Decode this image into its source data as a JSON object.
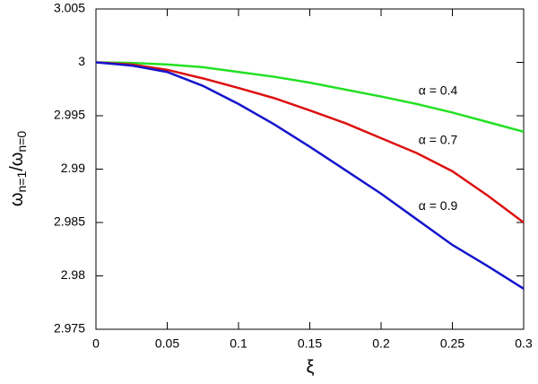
{
  "chart_data": {
    "type": "line",
    "x_label": "ξ",
    "y_label": [
      "ω",
      "n=1",
      "/ω",
      "n=0"
    ],
    "x": [
      0,
      0.025,
      0.05,
      0.075,
      0.1,
      0.125,
      0.15,
      0.175,
      0.2,
      0.225,
      0.25,
      0.275,
      0.3
    ],
    "series": [
      {
        "name": "α = 0.4",
        "color": "#22e022",
        "values": [
          3,
          2.99995,
          2.9998,
          2.99955,
          2.9991,
          2.99865,
          2.9981,
          2.99745,
          2.9968,
          2.9961,
          2.9953,
          2.9944,
          2.9935
        ]
      },
      {
        "name": "α = 0.7",
        "color": "#dd1111",
        "values": [
          3,
          2.9998,
          2.9993,
          2.9985,
          2.9976,
          2.99665,
          2.9955,
          2.9943,
          2.9929,
          2.9915,
          2.9898,
          2.9875,
          2.985
        ]
      },
      {
        "name": "α = 0.9",
        "color": "#1515cc",
        "values": [
          3,
          2.9997,
          2.9991,
          2.9978,
          2.9961,
          2.9942,
          2.9921,
          2.9899,
          2.9877,
          2.9853,
          2.9829,
          2.9809,
          2.9788
        ]
      }
    ],
    "xlim": [
      0,
      0.3
    ],
    "ylim": [
      2.975,
      3.005
    ],
    "xticks": [
      0,
      0.05,
      0.1,
      0.15,
      0.2,
      0.25,
      0.3
    ],
    "yticks": [
      2.975,
      2.98,
      2.985,
      2.99,
      2.995,
      3,
      3.005
    ],
    "grid": false
  }
}
